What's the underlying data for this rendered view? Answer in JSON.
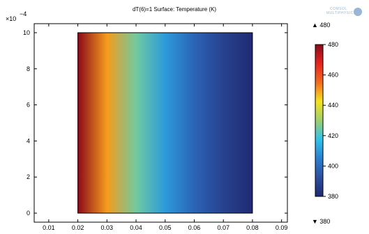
{
  "title": "dT(6)=1  Surface: Temperature (K)",
  "logo": {
    "line1": "COMSOL",
    "line2": "MULTIPHYSICS",
    "color": "#9ab6d6"
  },
  "y_exponent": {
    "base": "×10",
    "exp": "−4"
  },
  "colorbar": {
    "max_label": "▲ 480",
    "min_label": "▼ 380",
    "ticks": [
      "480",
      "460",
      "440",
      "420",
      "400",
      "380"
    ],
    "tick_values": [
      480,
      460,
      440,
      420,
      400,
      380
    ],
    "colormap": [
      "#8b0a1a",
      "#e8231f",
      "#f56b1e",
      "#f7e21b",
      "#9dcf6e",
      "#2ec3ea",
      "#2a7fd2",
      "#2c4fa0",
      "#1f2a72"
    ]
  },
  "chart_data": {
    "type": "heatmap",
    "title": "dT(6)=1  Surface: Temperature (K)",
    "xlabel": "",
    "ylabel": "",
    "xlim": [
      0.005,
      0.092
    ],
    "ylim": [
      -0.5,
      10.5
    ],
    "x_ticks": [
      "0.01",
      "0.02",
      "0.03",
      "0.04",
      "0.05",
      "0.06",
      "0.07",
      "0.08",
      "0.09"
    ],
    "x_tick_values": [
      0.01,
      0.02,
      0.03,
      0.04,
      0.05,
      0.06,
      0.07,
      0.08,
      0.09
    ],
    "y_ticks": [
      "0",
      "2",
      "4",
      "6",
      "8",
      "10"
    ],
    "y_tick_values": [
      0,
      2,
      4,
      6,
      8,
      10
    ],
    "domain": {
      "x": [
        0.02,
        0.08
      ],
      "y": [
        0,
        10
      ]
    },
    "surface": {
      "variable": "Temperature (K)",
      "x": [
        0.02,
        0.03,
        0.04,
        0.05,
        0.06,
        0.07,
        0.08
      ],
      "values": [
        480,
        450,
        425,
        410,
        398,
        388,
        380
      ],
      "range": [
        380,
        480
      ]
    }
  }
}
